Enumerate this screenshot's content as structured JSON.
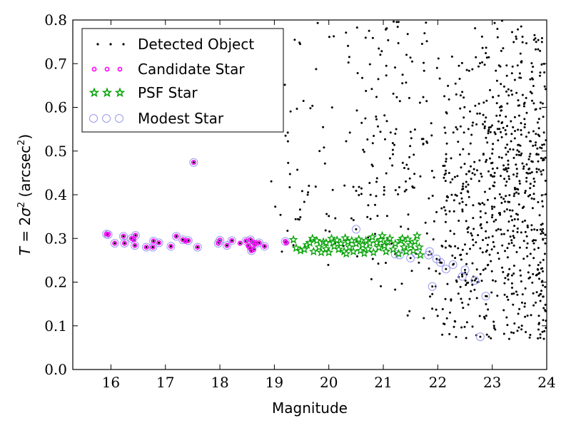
{
  "chart_data": {
    "type": "scatter",
    "xlabel": "Magnitude",
    "ylabel": "T = 2σ² (arcsec²)",
    "ylabel_parts": {
      "lhs": "T",
      "eq": " = 2",
      "sigma": "σ",
      "sup": "2",
      "unit_open": " (arcsec",
      "unit_sup": "2",
      "unit_close": ")"
    },
    "xlim": [
      15.3,
      24
    ],
    "ylim": [
      0,
      0.8
    ],
    "xticks": [
      16,
      17,
      18,
      19,
      20,
      21,
      22,
      23,
      24
    ],
    "yticks": [
      0.0,
      0.1,
      0.2,
      0.3,
      0.4,
      0.5,
      0.6,
      0.7,
      0.8
    ],
    "ytick_labels": [
      "0.0",
      "0.1",
      "0.2",
      "0.3",
      "0.4",
      "0.5",
      "0.6",
      "0.7",
      "0.8"
    ],
    "legend_position": "top-left",
    "grid": false,
    "series": [
      {
        "name": "Detected Object",
        "marker": "dot",
        "color": "#000000"
      },
      {
        "name": "Candidate Star",
        "marker": "circle",
        "color": "#ff00ff"
      },
      {
        "name": "PSF Star",
        "marker": "star",
        "color": "#00a000"
      },
      {
        "name": "Modest Star",
        "marker": "ring",
        "color": "#9999ee"
      }
    ],
    "candidate_points": [
      [
        15.92,
        0.31
      ],
      [
        15.95,
        0.309
      ],
      [
        16.07,
        0.289
      ],
      [
        16.23,
        0.305
      ],
      [
        16.25,
        0.289
      ],
      [
        16.38,
        0.3
      ],
      [
        16.42,
        0.297
      ],
      [
        16.45,
        0.307
      ],
      [
        16.44,
        0.284
      ],
      [
        16.65,
        0.28
      ],
      [
        16.78,
        0.294
      ],
      [
        16.77,
        0.28
      ],
      [
        16.88,
        0.29
      ],
      [
        17.1,
        0.282
      ],
      [
        17.2,
        0.305
      ],
      [
        17.32,
        0.297
      ],
      [
        17.37,
        0.294
      ],
      [
        17.42,
        0.295
      ],
      [
        17.52,
        0.474
      ],
      [
        17.59,
        0.28
      ],
      [
        17.97,
        0.289
      ],
      [
        18.0,
        0.296
      ],
      [
        18.13,
        0.284
      ],
      [
        18.22,
        0.295
      ],
      [
        18.37,
        0.289
      ],
      [
        18.48,
        0.294
      ],
      [
        18.52,
        0.283
      ],
      [
        18.55,
        0.278
      ],
      [
        18.56,
        0.297
      ],
      [
        18.6,
        0.292
      ],
      [
        18.58,
        0.272
      ],
      [
        18.62,
        0.275
      ],
      [
        18.64,
        0.286
      ],
      [
        18.66,
        0.29
      ],
      [
        18.72,
        0.29
      ],
      [
        18.82,
        0.282
      ],
      [
        19.2,
        0.293
      ],
      [
        19.22,
        0.29
      ]
    ],
    "modest_points": [
      [
        15.92,
        0.31
      ],
      [
        15.95,
        0.309
      ],
      [
        16.07,
        0.289
      ],
      [
        16.23,
        0.305
      ],
      [
        16.25,
        0.289
      ],
      [
        16.38,
        0.3
      ],
      [
        16.45,
        0.307
      ],
      [
        16.44,
        0.284
      ],
      [
        16.65,
        0.28
      ],
      [
        16.78,
        0.294
      ],
      [
        16.77,
        0.28
      ],
      [
        16.88,
        0.29
      ],
      [
        17.1,
        0.282
      ],
      [
        17.2,
        0.305
      ],
      [
        17.32,
        0.297
      ],
      [
        17.42,
        0.295
      ],
      [
        17.52,
        0.474
      ],
      [
        17.59,
        0.28
      ],
      [
        17.97,
        0.289
      ],
      [
        18.0,
        0.296
      ],
      [
        18.13,
        0.284
      ],
      [
        18.22,
        0.295
      ],
      [
        18.48,
        0.294
      ],
      [
        18.56,
        0.297
      ],
      [
        18.58,
        0.272
      ],
      [
        18.64,
        0.286
      ],
      [
        18.72,
        0.29
      ],
      [
        18.82,
        0.282
      ],
      [
        19.2,
        0.293
      ],
      [
        20.5,
        0.321
      ],
      [
        21.22,
        0.264
      ],
      [
        21.5,
        0.255
      ],
      [
        21.6,
        0.265
      ],
      [
        21.83,
        0.262
      ],
      [
        21.9,
        0.19
      ],
      [
        21.98,
        0.253
      ],
      [
        22.05,
        0.245
      ],
      [
        22.15,
        0.23
      ],
      [
        22.28,
        0.24
      ],
      [
        22.45,
        0.213
      ],
      [
        22.5,
        0.228
      ],
      [
        22.68,
        0.204
      ],
      [
        22.78,
        0.075
      ],
      [
        22.88,
        0.168
      ],
      [
        21.85,
        0.27
      ],
      [
        21.3,
        0.262
      ]
    ],
    "psf_points": [
      [
        19.35,
        0.297
      ],
      [
        19.4,
        0.278
      ],
      [
        19.48,
        0.272
      ],
      [
        19.55,
        0.275
      ],
      [
        19.6,
        0.285
      ],
      [
        19.65,
        0.29
      ],
      [
        19.7,
        0.3
      ],
      [
        19.72,
        0.27
      ],
      [
        19.78,
        0.295
      ],
      [
        19.82,
        0.28
      ],
      [
        19.86,
        0.268
      ],
      [
        19.9,
        0.292
      ],
      [
        19.95,
        0.276
      ],
      [
        20.0,
        0.268
      ],
      [
        20.05,
        0.3
      ],
      [
        20.08,
        0.29
      ],
      [
        20.1,
        0.282
      ],
      [
        20.15,
        0.296
      ],
      [
        20.18,
        0.275
      ],
      [
        20.22,
        0.288
      ],
      [
        20.28,
        0.27
      ],
      [
        20.3,
        0.301
      ],
      [
        20.35,
        0.292
      ],
      [
        20.38,
        0.28
      ],
      [
        20.42,
        0.295
      ],
      [
        20.45,
        0.27
      ],
      [
        20.5,
        0.288
      ],
      [
        20.55,
        0.298
      ],
      [
        20.58,
        0.272
      ],
      [
        20.62,
        0.285
      ],
      [
        20.68,
        0.295
      ],
      [
        20.72,
        0.276
      ],
      [
        20.75,
        0.289
      ],
      [
        20.8,
        0.303
      ],
      [
        20.82,
        0.268
      ],
      [
        20.88,
        0.29
      ],
      [
        20.92,
        0.279
      ],
      [
        20.95,
        0.297
      ],
      [
        20.98,
        0.306
      ],
      [
        21.02,
        0.283
      ],
      [
        21.05,
        0.27
      ],
      [
        21.08,
        0.292
      ],
      [
        21.12,
        0.3
      ],
      [
        21.18,
        0.275
      ],
      [
        21.22,
        0.288
      ],
      [
        21.28,
        0.265
      ],
      [
        21.32,
        0.295
      ],
      [
        21.38,
        0.28
      ],
      [
        21.42,
        0.27
      ],
      [
        21.45,
        0.298
      ],
      [
        21.5,
        0.285
      ],
      [
        21.55,
        0.272
      ],
      [
        21.58,
        0.293
      ],
      [
        21.62,
        0.306
      ],
      [
        21.66,
        0.28
      ],
      [
        21.68,
        0.262
      ],
      [
        20.32,
        0.265
      ],
      [
        19.95,
        0.29
      ],
      [
        20.65,
        0.266
      ],
      [
        21.35,
        0.3
      ]
    ]
  }
}
